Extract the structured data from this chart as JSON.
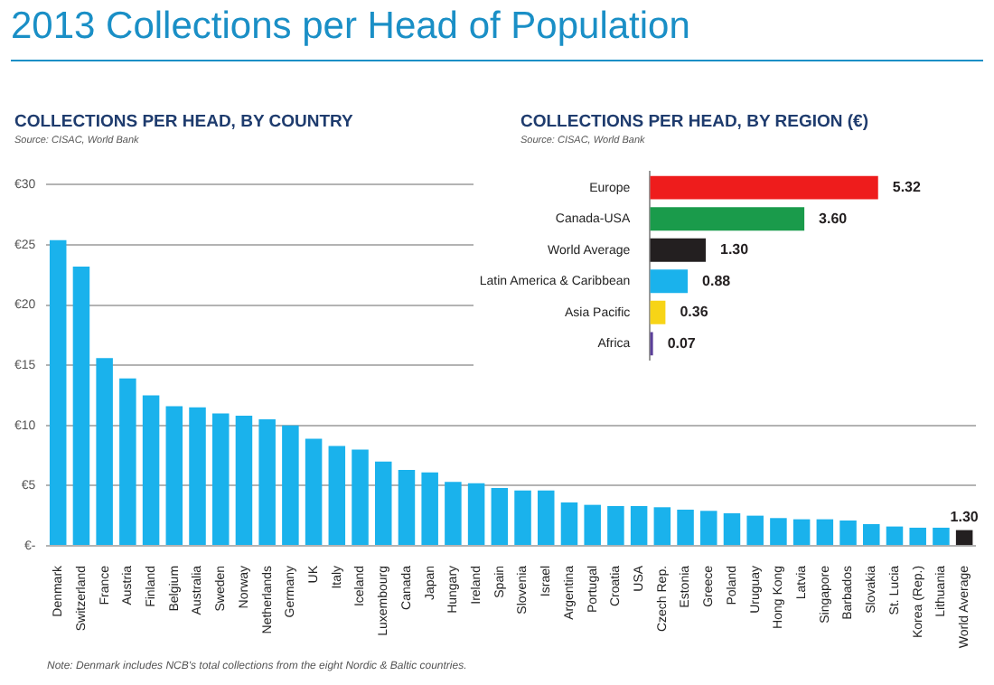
{
  "chart_data": [
    {
      "type": "bar",
      "title": "2013 Collections per Head of Population",
      "subtitle": "COLLECTIONS PER HEAD, BY COUNTRY",
      "annotations": [
        "Source: CISAC, World Bank",
        "Note: Denmark includes NCB's total collections from the eight Nordic & Baltic countries."
      ],
      "categories": [
        "Denmark",
        "Switzerland",
        "France",
        "Austria",
        "Finland",
        "Belgium",
        "Australia",
        "Sweden",
        "Norway",
        "Netherlands",
        "Germany",
        "UK",
        "Italy",
        "Iceland",
        "Luxembourg",
        "Canada",
        "Japan",
        "Hungary",
        "Ireland",
        "Spain",
        "Slovenia",
        "Israel",
        "Argentina",
        "Portugal",
        "Croatia",
        "USA",
        "Czech Rep.",
        "Estonia",
        "Greece",
        "Poland",
        "Uruguay",
        "Hong Kong",
        "Latvia",
        "Singapore",
        "Barbados",
        "Slovakia",
        "St. Lucia",
        "Korea (Rep.)",
        "Lithuania",
        "World Average"
      ],
      "values": [
        25.4,
        23.2,
        15.6,
        13.9,
        12.5,
        11.6,
        11.5,
        11.0,
        10.8,
        10.5,
        10.0,
        8.9,
        8.3,
        8.0,
        7.0,
        6.3,
        6.1,
        5.3,
        5.2,
        4.8,
        4.6,
        4.6,
        3.6,
        3.4,
        3.3,
        3.3,
        3.2,
        3.0,
        2.9,
        2.7,
        2.5,
        2.3,
        2.2,
        2.2,
        2.1,
        1.8,
        1.6,
        1.5,
        1.5,
        1.3
      ],
      "colors": [
        "#1ab2ec",
        "#1ab2ec",
        "#1ab2ec",
        "#1ab2ec",
        "#1ab2ec",
        "#1ab2ec",
        "#1ab2ec",
        "#1ab2ec",
        "#1ab2ec",
        "#1ab2ec",
        "#1ab2ec",
        "#1ab2ec",
        "#1ab2ec",
        "#1ab2ec",
        "#1ab2ec",
        "#1ab2ec",
        "#1ab2ec",
        "#1ab2ec",
        "#1ab2ec",
        "#1ab2ec",
        "#1ab2ec",
        "#1ab2ec",
        "#1ab2ec",
        "#1ab2ec",
        "#1ab2ec",
        "#1ab2ec",
        "#1ab2ec",
        "#1ab2ec",
        "#1ab2ec",
        "#1ab2ec",
        "#1ab2ec",
        "#1ab2ec",
        "#1ab2ec",
        "#1ab2ec",
        "#1ab2ec",
        "#1ab2ec",
        "#1ab2ec",
        "#1ab2ec",
        "#1ab2ec",
        "#231f20"
      ],
      "value_labels": [
        null,
        null,
        null,
        null,
        null,
        null,
        null,
        null,
        null,
        null,
        null,
        null,
        null,
        null,
        null,
        null,
        null,
        null,
        null,
        null,
        null,
        null,
        null,
        null,
        null,
        null,
        null,
        null,
        null,
        null,
        null,
        null,
        null,
        null,
        null,
        null,
        null,
        null,
        null,
        "1.30"
      ],
      "ylim": [
        0,
        30
      ],
      "yticks": [
        {
          "value": 0,
          "label": "€-"
        },
        {
          "value": 5,
          "label": "€5"
        },
        {
          "value": 10,
          "label": "€10"
        },
        {
          "value": 15,
          "label": "€15"
        },
        {
          "value": 20,
          "label": "€20"
        },
        {
          "value": 25,
          "label": "€25"
        },
        {
          "value": 30,
          "label": "€30"
        }
      ],
      "grid": "y",
      "legend": false
    },
    {
      "type": "bar",
      "orientation": "horizontal",
      "title": "COLLECTIONS PER HEAD, BY REGION (€)",
      "annotations": [
        "Source: CISAC, World Bank"
      ],
      "categories": [
        "Europe",
        "Canada-USA",
        "World Average",
        "Latin America & Caribbean",
        "Asia Pacific",
        "Africa"
      ],
      "values": [
        5.32,
        3.6,
        1.3,
        0.88,
        0.36,
        0.07
      ],
      "colors": [
        "#ee1c1c",
        "#1a9b4b",
        "#231f20",
        "#1ab2ec",
        "#f7d417",
        "#5b3f99"
      ],
      "value_labels": [
        "5.32",
        "3.60",
        "1.30",
        "0.88",
        "0.36",
        "0.07"
      ],
      "legend": false,
      "grid": false
    }
  ]
}
